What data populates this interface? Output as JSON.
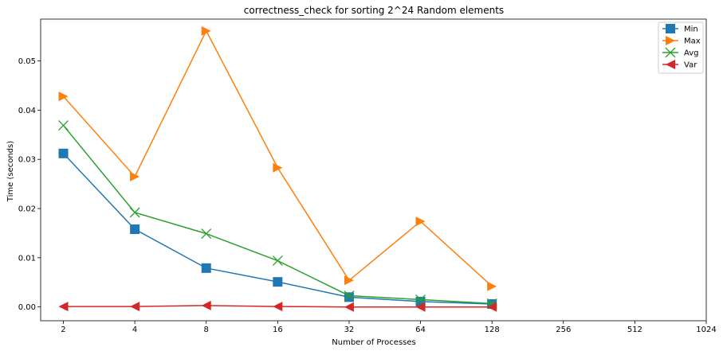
{
  "chart_data": {
    "type": "line",
    "title": "correctness_check for sorting 2^24 Random elements",
    "xlabel": "Number of Processes",
    "ylabel": "Time (seconds)",
    "x_scale": "log2",
    "x_ticks": [
      2,
      4,
      8,
      16,
      32,
      64,
      128,
      256,
      512,
      1024
    ],
    "x_tick_labels": [
      "2",
      "4",
      "8",
      "16",
      "32",
      "64",
      "128",
      "256",
      "512",
      "1024"
    ],
    "y_ticks": [
      0.0,
      0.01,
      0.02,
      0.03,
      0.04,
      0.05
    ],
    "y_tick_labels": [
      "0.00",
      "0.01",
      "0.02",
      "0.03",
      "0.04",
      "0.05"
    ],
    "ylim": [
      -0.0028,
      0.0585
    ],
    "grid": false,
    "legend_position": "top-right",
    "x": [
      2,
      4,
      8,
      16,
      32,
      64,
      128
    ],
    "series": [
      {
        "name": "Min",
        "color": "#1f77b4",
        "marker": "square",
        "values": [
          0.0312,
          0.0158,
          0.0079,
          0.0051,
          0.002,
          0.0011,
          0.0006
        ]
      },
      {
        "name": "Max",
        "color": "#ff7f0e",
        "marker": "triangle-right",
        "values": [
          0.0428,
          0.0265,
          0.0561,
          0.0283,
          0.0054,
          0.0174,
          0.0042
        ]
      },
      {
        "name": "Avg",
        "color": "#2ca02c",
        "marker": "x",
        "values": [
          0.0369,
          0.0192,
          0.0149,
          0.0094,
          0.0023,
          0.0015,
          0.0007
        ]
      },
      {
        "name": "Var",
        "color": "#d62728",
        "marker": "triangle-left",
        "values": [
          0.0001,
          0.0001,
          0.0003,
          0.0001,
          0.0,
          0.0,
          0.0
        ]
      }
    ]
  }
}
